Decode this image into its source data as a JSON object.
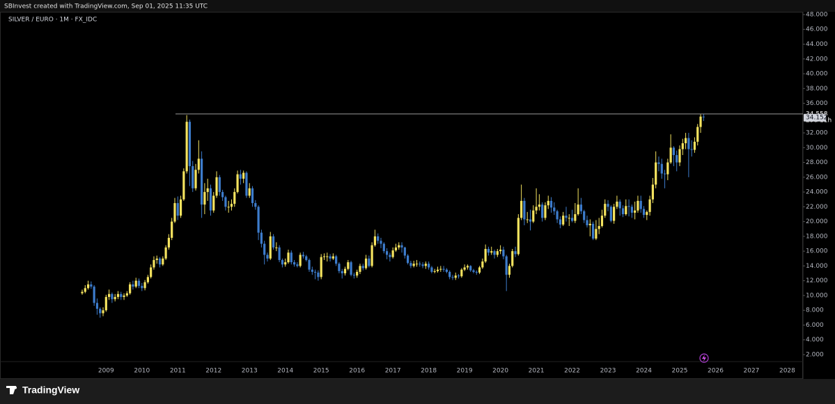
{
  "header": "SBInvest created with TradingView.com, Sep 01, 2025 11:35 UTC",
  "footer": {
    "logo": "TradingView"
  },
  "chart_data": {
    "type": "candlestick",
    "title": "SILVER / EURO · 1M · FX_IDC",
    "up_color": "#f4e35f",
    "down_color": "#3d7ccc",
    "hline": 34.558,
    "countdown": "29d 11h",
    "ylim": [
      1.06,
      48.28
    ],
    "yticks": [
      {
        "value": 2,
        "label": "2.000"
      },
      {
        "value": 4,
        "label": "4.000"
      },
      {
        "value": 6,
        "label": "6.000"
      },
      {
        "value": 8,
        "label": "8.000"
      },
      {
        "value": 10,
        "label": "10.000"
      },
      {
        "value": 12,
        "label": "12.000"
      },
      {
        "value": 14,
        "label": "14.000"
      },
      {
        "value": 16,
        "label": "16.000"
      },
      {
        "value": 18,
        "label": "18.000"
      },
      {
        "value": 20,
        "label": "20.000"
      },
      {
        "value": 22,
        "label": "22.000"
      },
      {
        "value": 24,
        "label": "24.000"
      },
      {
        "value": 26,
        "label": "26.000"
      },
      {
        "value": 28,
        "label": "28.000"
      },
      {
        "value": 30,
        "label": "30.000"
      },
      {
        "value": 32,
        "label": "32.000"
      },
      {
        "value": 36,
        "label": "36.000"
      },
      {
        "value": 38,
        "label": "38.000"
      },
      {
        "value": 40,
        "label": "40.000"
      },
      {
        "value": 42,
        "label": "42.000"
      },
      {
        "value": 44,
        "label": "44.000"
      },
      {
        "value": 46,
        "label": "46.000"
      },
      {
        "value": 48,
        "label": "48.000"
      }
    ],
    "categories": [
      null,
      null,
      null,
      null,
      null,
      null,
      null,
      null,
      "2009",
      null,
      null,
      null,
      null,
      null,
      null,
      null,
      null,
      null,
      null,
      null,
      "2010",
      null,
      null,
      null,
      null,
      null,
      null,
      null,
      null,
      null,
      null,
      null,
      "2011",
      null,
      null,
      null,
      null,
      null,
      null,
      null,
      null,
      null,
      null,
      null,
      "2012",
      null,
      null,
      null,
      null,
      null,
      null,
      null,
      null,
      null,
      null,
      null,
      "2013",
      null,
      null,
      null,
      null,
      null,
      null,
      null,
      null,
      null,
      null,
      null,
      "2014",
      null,
      null,
      null,
      null,
      null,
      null,
      null,
      null,
      null,
      null,
      null,
      "2015",
      null,
      null,
      null,
      null,
      null,
      null,
      null,
      null,
      null,
      null,
      null,
      "2016",
      null,
      null,
      null,
      null,
      null,
      null,
      null,
      null,
      null,
      null,
      null,
      "2017",
      null,
      null,
      null,
      null,
      null,
      null,
      null,
      null,
      null,
      null,
      null,
      "2018",
      null,
      null,
      null,
      null,
      null,
      null,
      null,
      null,
      null,
      null,
      null,
      "2019",
      null,
      null,
      null,
      null,
      null,
      null,
      null,
      null,
      null,
      null,
      null,
      "2020",
      null,
      null,
      null,
      null,
      null,
      null,
      null,
      null,
      null,
      null,
      null,
      "2021",
      null,
      null,
      null,
      null,
      null,
      null,
      null,
      null,
      null,
      null,
      null,
      "2022",
      null,
      null,
      null,
      null,
      null,
      null,
      null,
      null,
      null,
      null,
      null,
      "2023",
      null,
      null,
      null,
      null,
      null,
      null,
      null,
      null,
      null,
      null,
      null,
      "2024",
      null,
      null,
      null,
      null,
      null,
      null,
      null,
      null,
      null,
      null,
      null,
      "2025",
      null,
      null,
      null,
      null,
      null,
      null,
      null,
      null,
      null,
      null,
      null,
      "2026",
      null,
      null,
      null,
      null,
      null,
      null,
      null,
      null,
      null,
      null,
      null,
      "2027",
      null,
      null,
      null,
      null,
      null,
      null,
      null,
      null,
      null,
      null,
      null,
      "2028",
      null,
      null,
      null,
      null
    ],
    "open": [
      10.3,
      10.5,
      11.0,
      11.5,
      11.2,
      9.0,
      8.2,
      7.6,
      8.0,
      9.8,
      10.2,
      9.5,
      9.8,
      10.2,
      9.8,
      10.0,
      10.3,
      11.5,
      11.2,
      12.0,
      11.3,
      11.0,
      11.8,
      12.5,
      13.8,
      14.8,
      15.0,
      14.2,
      15.0,
      16.5,
      17.8,
      20.0,
      22.5,
      20.8,
      23.0,
      26.8,
      33.5,
      27.5,
      24.5,
      27.0,
      28.5,
      22.3,
      24.0,
      24.5,
      21.5,
      23.5,
      26.0,
      24.0,
      23.3,
      22.0,
      22.0,
      22.4,
      24.0,
      26.4,
      25.8,
      26.6,
      23.5,
      24.5,
      22.5,
      22.0,
      18.5,
      17.0,
      15.5,
      15.0,
      18.0,
      16.5,
      16.5,
      14.8,
      14.2,
      14.5,
      15.8,
      14.5,
      14.2,
      14.0,
      15.5,
      15.3,
      14.8,
      13.5,
      13.2,
      13.1,
      12.5,
      15.2,
      15.3,
      15.3,
      15.0,
      15.3,
      14.3,
      13.3,
      13.0,
      13.6,
      14.5,
      12.8,
      12.7,
      13.2,
      14.0,
      13.7,
      15.0,
      14.0,
      16.8,
      18.0,
      17.4,
      17.0,
      16.0,
      15.5,
      15.2,
      16.1,
      16.5,
      16.8,
      16.5,
      15.4,
      14.4,
      14.0,
      14.3,
      14.3,
      14.2,
      14.0,
      14.3,
      13.8,
      13.2,
      13.3,
      13.5,
      13.6,
      13.5,
      13.2,
      12.5,
      12.4,
      12.7,
      12.6,
      13.5,
      13.8,
      14.0,
      13.4,
      13.2,
      13.1,
      13.8,
      14.6,
      16.3,
      15.8,
      16.0,
      15.5,
      16.0,
      16.2,
      15.3,
      12.8,
      14.0,
      16.0,
      15.6,
      20.5,
      22.8,
      20.3,
      20.3,
      20.0,
      21.5,
      22.0,
      22.3,
      20.5,
      22.2,
      22.8,
      21.9,
      21.4,
      20.3,
      19.6,
      20.8,
      20.5,
      20.5,
      20.1,
      21.0,
      22.3,
      21.4,
      20.2,
      19.5,
      19.7,
      17.7,
      19.0,
      19.4,
      20.8,
      22.4,
      22.0,
      20.1,
      22.0,
      22.7,
      21.8,
      21.0,
      22.1,
      22.0,
      21.2,
      21.5,
      22.8,
      21.7,
      20.9,
      21.3,
      23.0,
      25.0,
      28.0,
      27.8,
      26.5,
      26.4,
      28.0,
      30.0,
      29.0,
      28.0,
      29.8,
      30.6,
      31.3,
      29.8,
      29.7,
      30.8,
      32.8,
      34.2,
      null,
      null,
      null,
      null,
      null,
      null,
      null,
      null,
      null,
      null,
      null,
      null,
      null,
      null,
      null,
      null,
      null,
      null,
      null,
      null,
      null,
      null,
      null,
      null,
      null,
      null,
      null,
      null,
      null,
      null,
      null,
      null
    ],
    "high": [
      10.8,
      11.4,
      12.0,
      11.9,
      11.4,
      9.6,
      8.4,
      8.4,
      10.1,
      10.8,
      10.4,
      10.2,
      10.6,
      10.5,
      10.3,
      10.6,
      11.8,
      12.0,
      12.4,
      12.3,
      11.7,
      12.1,
      12.8,
      14.2,
      15.3,
      15.4,
      15.2,
      15.3,
      16.8,
      18.3,
      20.5,
      23.2,
      23.4,
      23.5,
      27.2,
      34.4,
      33.8,
      28.2,
      27.8,
      31.0,
      29.5,
      25.2,
      25.8,
      25.0,
      24.0,
      26.8,
      26.3,
      24.3,
      23.5,
      22.8,
      23.0,
      24.5,
      26.9,
      27.0,
      26.9,
      26.8,
      25.2,
      24.8,
      22.9,
      22.2,
      18.9,
      17.4,
      15.8,
      18.6,
      18.3,
      17.2,
      16.8,
      15.0,
      15.0,
      16.2,
      16.1,
      14.8,
      14.5,
      15.8,
      15.9,
      15.5,
      15.0,
      13.9,
      13.5,
      13.4,
      15.6,
      15.7,
      15.8,
      15.6,
      15.7,
      15.5,
      14.5,
      13.6,
      13.9,
      14.8,
      14.7,
      13.1,
      13.5,
      14.3,
      14.3,
      15.5,
      15.4,
      17.2,
      18.9,
      18.4,
      17.8,
      17.2,
      16.4,
      15.8,
      16.5,
      17.0,
      17.2,
      17.2,
      16.6,
      15.6,
      14.7,
      14.7,
      14.8,
      14.6,
      14.5,
      14.6,
      14.6,
      14.0,
      13.6,
      13.9,
      14.0,
      14.0,
      13.7,
      13.4,
      12.8,
      13.1,
      12.9,
      13.7,
      14.2,
      14.2,
      14.1,
      13.6,
      13.4,
      14.0,
      15.0,
      16.9,
      16.6,
      16.6,
      16.2,
      16.3,
      16.8,
      16.6,
      15.5,
      14.3,
      16.3,
      16.6,
      21.0,
      25.0,
      23.2,
      21.3,
      21.6,
      22.2,
      24.5,
      23.7,
      22.6,
      22.6,
      23.5,
      23.3,
      22.6,
      21.6,
      20.7,
      21.3,
      22.0,
      21.0,
      21.6,
      22.5,
      24.5,
      23.2,
      21.6,
      20.8,
      20.3,
      20.0,
      20.2,
      20.5,
      21.6,
      23.0,
      22.9,
      22.2,
      22.4,
      23.5,
      23.0,
      22.2,
      23.0,
      23.0,
      22.3,
      22.7,
      23.5,
      23.5,
      22.1,
      21.5,
      23.5,
      25.9,
      29.5,
      28.8,
      28.5,
      27.0,
      28.5,
      31.8,
      30.2,
      29.6,
      30.3,
      31.2,
      32.0,
      32.0,
      31.0,
      31.4,
      33.2,
      34.5,
      34.558,
      null,
      null,
      null,
      null,
      null,
      null,
      null,
      null,
      null,
      null,
      null,
      null,
      null,
      null,
      null,
      null,
      null,
      null,
      null,
      null,
      null,
      null,
      null,
      null,
      null,
      null,
      null,
      null,
      null,
      null,
      null,
      null
    ],
    "low": [
      10.1,
      10.3,
      10.8,
      10.9,
      8.6,
      7.4,
      7.0,
      7.2,
      7.8,
      9.4,
      9.0,
      9.2,
      9.5,
      9.4,
      9.4,
      9.8,
      10.1,
      10.8,
      11.0,
      11.0,
      10.6,
      10.7,
      11.6,
      12.3,
      13.5,
      14.3,
      13.8,
      14.0,
      14.8,
      16.2,
      17.5,
      19.8,
      20.2,
      20.5,
      22.8,
      26.5,
      24.8,
      24.0,
      24.2,
      26.5,
      20.5,
      21.0,
      22.8,
      20.8,
      21.2,
      23.2,
      23.5,
      22.8,
      21.5,
      21.2,
      21.5,
      22.0,
      23.8,
      25.0,
      25.2,
      23.2,
      23.2,
      22.0,
      21.6,
      17.5,
      16.5,
      14.2,
      14.6,
      14.8,
      16.2,
      16.0,
      14.5,
      13.8,
      13.9,
      14.3,
      14.2,
      13.9,
      13.8,
      13.8,
      15.0,
      14.6,
      13.2,
      12.8,
      12.2,
      12.0,
      12.2,
      14.8,
      14.6,
      14.6,
      14.8,
      14.0,
      13.0,
      12.3,
      12.7,
      13.4,
      12.6,
      12.3,
      12.4,
      12.9,
      13.4,
      13.5,
      13.8,
      13.8,
      16.6,
      17.0,
      16.4,
      15.7,
      14.9,
      14.6,
      15.0,
      15.9,
      16.2,
      15.8,
      15.0,
      14.2,
      13.7,
      13.8,
      13.9,
      13.9,
      13.7,
      13.6,
      13.5,
      13.0,
      13.0,
      13.1,
      13.2,
      13.2,
      13.0,
      12.2,
      12.1,
      12.1,
      12.3,
      12.4,
      13.3,
      13.5,
      13.2,
      13.0,
      12.8,
      12.9,
      13.6,
      14.4,
      15.4,
      15.5,
      15.0,
      15.2,
      15.6,
      14.9,
      10.6,
      12.4,
      13.8,
      15.2,
      15.4,
      20.2,
      19.5,
      19.8,
      18.8,
      19.8,
      21.0,
      21.5,
      20.0,
      20.2,
      21.7,
      21.2,
      20.9,
      19.8,
      19.1,
      19.4,
      20.0,
      19.4,
      19.9,
      19.8,
      20.8,
      21.0,
      19.8,
      19.2,
      18.0,
      17.5,
      17.5,
      18.3,
      19.2,
      20.5,
      21.4,
      19.9,
      19.7,
      21.7,
      20.8,
      20.6,
      20.8,
      20.7,
      20.5,
      20.3,
      21.2,
      21.2,
      20.5,
      20.2,
      20.8,
      22.5,
      24.5,
      26.8,
      25.8,
      24.5,
      25.6,
      27.8,
      27.5,
      26.8,
      27.5,
      29.0,
      29.8,
      26.0,
      28.8,
      29.3,
      30.3,
      32.0,
      33.6,
      null,
      null,
      null,
      null,
      null,
      null,
      null,
      null,
      null,
      null,
      null,
      null,
      null,
      null,
      null,
      null,
      null,
      null,
      null,
      null,
      null,
      null,
      null,
      null,
      null,
      null,
      null,
      null,
      null,
      null,
      null,
      null
    ],
    "close": [
      10.5,
      11.0,
      11.5,
      11.2,
      9.0,
      8.2,
      7.6,
      8.0,
      9.8,
      10.2,
      9.5,
      9.8,
      10.2,
      9.8,
      10.0,
      10.3,
      11.5,
      11.2,
      12.0,
      11.3,
      11.0,
      11.8,
      12.5,
      13.8,
      14.8,
      15.0,
      14.2,
      15.0,
      16.5,
      17.8,
      20.0,
      22.5,
      20.8,
      23.0,
      26.8,
      33.5,
      27.5,
      24.5,
      27.0,
      28.5,
      22.3,
      24.0,
      24.5,
      21.5,
      23.5,
      26.0,
      24.0,
      23.3,
      22.0,
      22.0,
      22.4,
      24.0,
      26.4,
      25.8,
      26.6,
      23.5,
      24.5,
      22.5,
      22.0,
      18.5,
      17.0,
      15.5,
      15.0,
      18.0,
      16.5,
      16.5,
      14.8,
      14.2,
      14.5,
      15.8,
      14.5,
      14.2,
      14.0,
      15.5,
      15.3,
      14.8,
      13.5,
      13.2,
      13.1,
      12.5,
      15.2,
      15.3,
      15.3,
      15.0,
      15.3,
      14.3,
      13.3,
      13.0,
      13.6,
      14.5,
      12.8,
      12.7,
      13.2,
      14.0,
      13.7,
      15.0,
      14.0,
      16.8,
      18.0,
      17.4,
      17.0,
      16.0,
      15.5,
      15.2,
      16.1,
      16.5,
      16.8,
      16.5,
      15.4,
      14.4,
      14.0,
      14.3,
      14.3,
      14.2,
      14.0,
      14.3,
      13.8,
      13.2,
      13.3,
      13.5,
      13.6,
      13.5,
      13.2,
      12.5,
      12.4,
      12.7,
      12.6,
      13.5,
      13.8,
      14.0,
      13.4,
      13.2,
      13.1,
      13.8,
      14.6,
      16.3,
      15.8,
      16.0,
      15.5,
      16.0,
      16.2,
      15.3,
      12.8,
      14.0,
      16.0,
      15.6,
      20.5,
      22.8,
      20.3,
      20.3,
      20.0,
      21.5,
      22.0,
      22.3,
      20.5,
      22.2,
      22.8,
      21.9,
      21.4,
      20.3,
      19.6,
      20.8,
      20.5,
      20.5,
      20.1,
      21.0,
      22.3,
      21.4,
      20.2,
      19.5,
      19.7,
      17.7,
      19.0,
      19.4,
      20.8,
      22.4,
      22.0,
      20.1,
      22.0,
      22.7,
      21.8,
      21.0,
      22.1,
      22.0,
      21.2,
      21.5,
      22.8,
      21.7,
      20.9,
      21.3,
      23.0,
      25.0,
      28.0,
      27.8,
      26.5,
      26.4,
      28.0,
      30.0,
      29.0,
      28.0,
      29.8,
      30.6,
      31.3,
      29.8,
      29.7,
      30.8,
      32.8,
      34.2,
      34.152,
      null,
      null,
      null,
      null,
      null,
      null,
      null,
      null,
      null,
      null,
      null,
      null,
      null,
      null,
      null,
      null,
      null,
      null,
      null,
      null,
      null,
      null,
      null,
      null,
      null,
      null,
      null,
      null,
      null,
      null,
      null,
      null
    ]
  }
}
